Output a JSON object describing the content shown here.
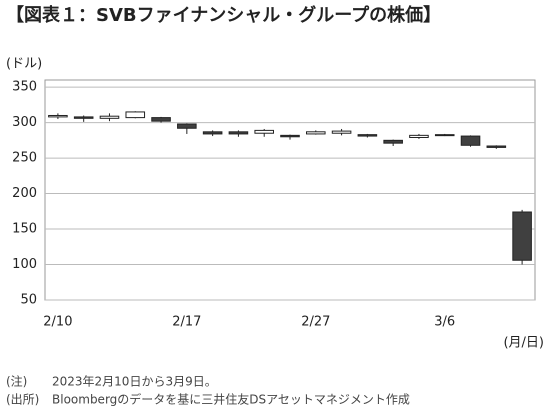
{
  "chart_data": {
    "type": "candlestick",
    "title": "【図表１：SVBファイナンシャル・グループの株価】",
    "y_label": "(ドル)",
    "x_label": "(月/日)",
    "categories": [
      "2/10",
      null,
      null,
      null,
      null,
      "2/17",
      null,
      null,
      null,
      null,
      "2/27",
      null,
      null,
      null,
      null,
      "3/6",
      null,
      null,
      null
    ],
    "open": [
      308,
      308,
      306,
      307,
      307,
      298,
      287,
      287,
      285,
      282,
      284,
      285,
      283,
      275,
      279,
      283,
      281,
      267,
      174
    ],
    "high": [
      313,
      310,
      313,
      316,
      308,
      299,
      289,
      289,
      291,
      283,
      289,
      291,
      284,
      276,
      284,
      284,
      282,
      268,
      177
    ],
    "low": [
      305,
      301,
      302,
      306,
      300,
      284,
      281,
      280,
      280,
      276,
      283,
      282,
      279,
      267,
      277,
      281,
      266,
      263,
      100
    ],
    "close": [
      310,
      306,
      309,
      315,
      302,
      292,
      284,
      284,
      289,
      280,
      287,
      288,
      281,
      271,
      282,
      282,
      268,
      265,
      106
    ],
    "up_color": "#ffffff",
    "down_color": "#404040",
    "edge_color": "#222222",
    "ylim": [
      50,
      360
    ],
    "yticks": [
      50,
      100,
      150,
      200,
      250,
      300,
      350
    ],
    "grid": true,
    "notes": [
      {
        "label": "(注)",
        "text": "2023年2月10日から3月9日。"
      },
      {
        "label": "(出所)",
        "text": "Bloombergのデータを基に三井住友DSアセットマネジメント作成"
      }
    ]
  }
}
